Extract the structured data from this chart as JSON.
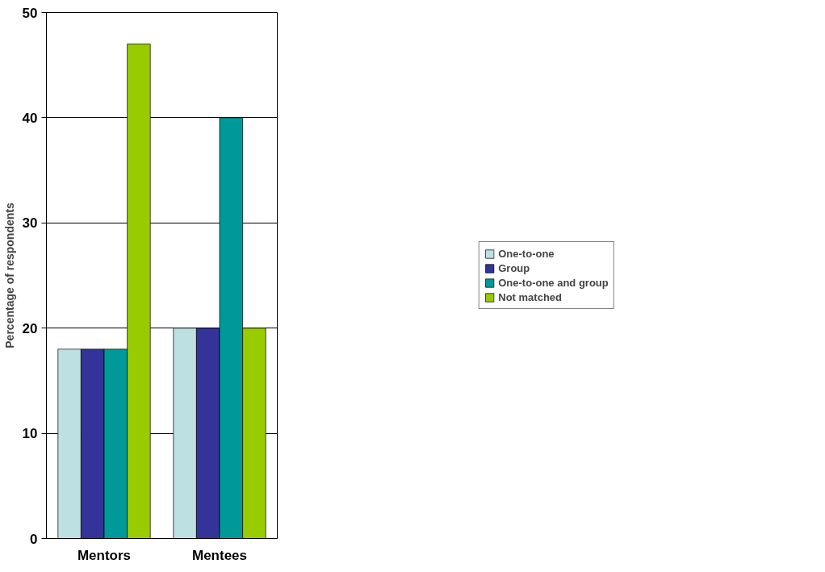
{
  "chart_data": {
    "type": "bar",
    "ylabel": "Percentage of respondents",
    "categories": [
      "Mentors",
      "Mentees"
    ],
    "series": [
      {
        "name": "One-to-one",
        "color": "#bde0e3",
        "values": [
          18,
          20
        ]
      },
      {
        "name": "Group",
        "color": "#333399",
        "values": [
          18,
          20
        ]
      },
      {
        "name": "One-to-one and group",
        "color": "#009999",
        "values": [
          18,
          40
        ]
      },
      {
        "name": "Not matched",
        "color": "#99cc00",
        "values": [
          47,
          20
        ]
      }
    ],
    "ylim": [
      0,
      50
    ],
    "yticks": [
      0,
      10,
      20,
      30,
      40,
      50
    ],
    "grid": "y",
    "legend": "right"
  }
}
